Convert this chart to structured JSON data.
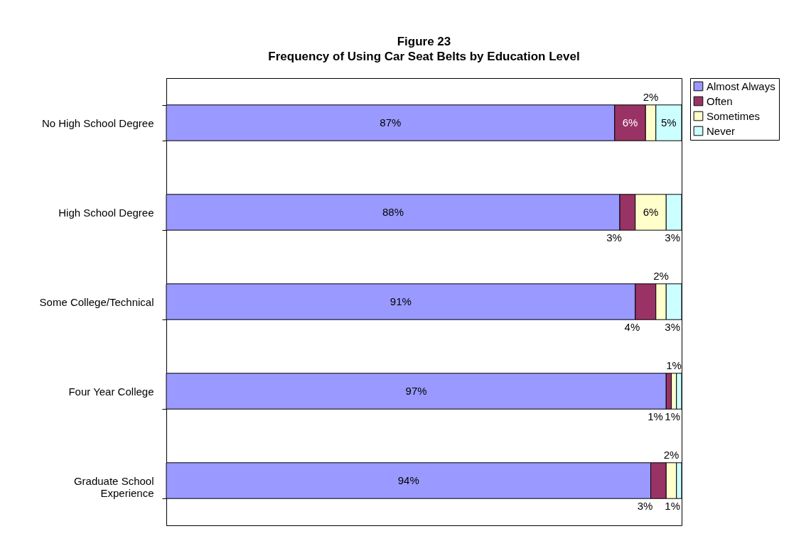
{
  "chart_data": {
    "type": "bar",
    "orientation": "horizontal",
    "stacked": true,
    "title": "Figure 23",
    "subtitle": "Frequency of Using Car Seat Belts by Education Level",
    "categories": [
      "No High School Degree",
      "High School Degree",
      "Some College/Technical",
      "Four Year College",
      "Graduate School Experience"
    ],
    "xlim": [
      0,
      100
    ],
    "tick_labels": "y",
    "grid": false,
    "legend": "right",
    "series": [
      {
        "name": "Almost Always",
        "color": "#9999ff",
        "values": [
          87,
          88,
          91,
          97,
          94
        ],
        "value_labels": [
          "87%",
          "88%",
          "91%",
          "97%",
          "94%"
        ]
      },
      {
        "name": "Often",
        "color": "#993366",
        "values": [
          6,
          3,
          4,
          1,
          3
        ],
        "value_labels": [
          "6%",
          "3%",
          "4%",
          "1%",
          "3%"
        ]
      },
      {
        "name": "Sometimes",
        "color": "#ffffcc",
        "values": [
          2,
          6,
          2,
          1,
          2
        ],
        "value_labels": [
          "2%",
          "6%",
          "2%",
          "1%",
          "2%"
        ]
      },
      {
        "name": "Never",
        "color": "#ccffff",
        "values": [
          5,
          3,
          3,
          1,
          1
        ],
        "value_labels": [
          "5%",
          "3%",
          "3%",
          "1%",
          "1%"
        ]
      }
    ]
  }
}
